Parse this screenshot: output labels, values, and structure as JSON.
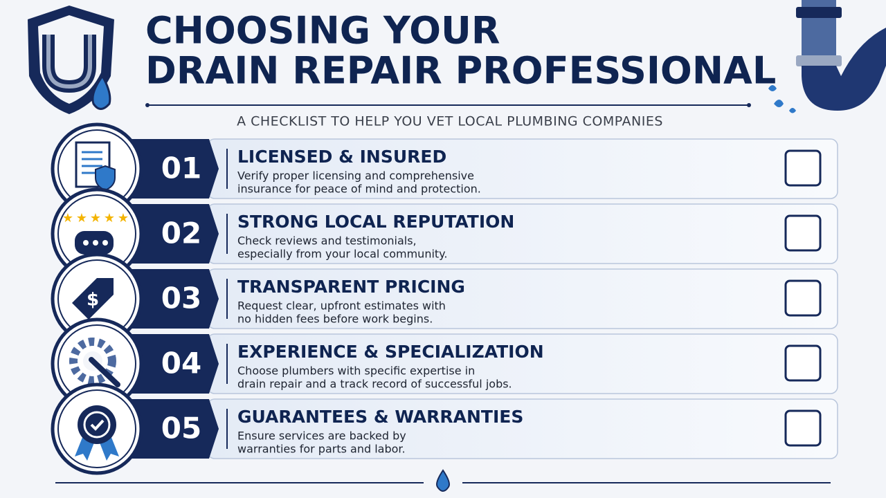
{
  "header": {
    "title_lines": [
      "CHOOSING YOUR",
      "DRAIN REPAIR PROFESSIONAL"
    ],
    "subtitle": "A CHECKLIST TO HELP YOU VET LOCAL PLUMBING COMPANIES"
  },
  "items": [
    {
      "number": "01",
      "title": "LICENSED & INSURED",
      "description": [
        "Verify proper licensing and comprehensive",
        "insurance for peace of mind and protection."
      ]
    },
    {
      "number": "02",
      "title": "STRONG LOCAL REPUTATION",
      "description": [
        "Check reviews and testimonials,",
        "especially from your local community."
      ]
    },
    {
      "number": "03",
      "title": "TRANSPARENT PRICING",
      "description": [
        "Request clear, upfront estimates with",
        "no hidden fees before work begins."
      ]
    },
    {
      "number": "04",
      "title": "EXPERIENCE & SPECIALIZATION",
      "description": [
        "Choose plumbers with specific expertise in",
        "drain repair and a track record of successful jobs."
      ]
    },
    {
      "number": "05",
      "title": "GUARANTEES & WARRANTIES",
      "description": [
        "Ensure services are backed by",
        "warranties for parts and labor."
      ]
    }
  ]
}
